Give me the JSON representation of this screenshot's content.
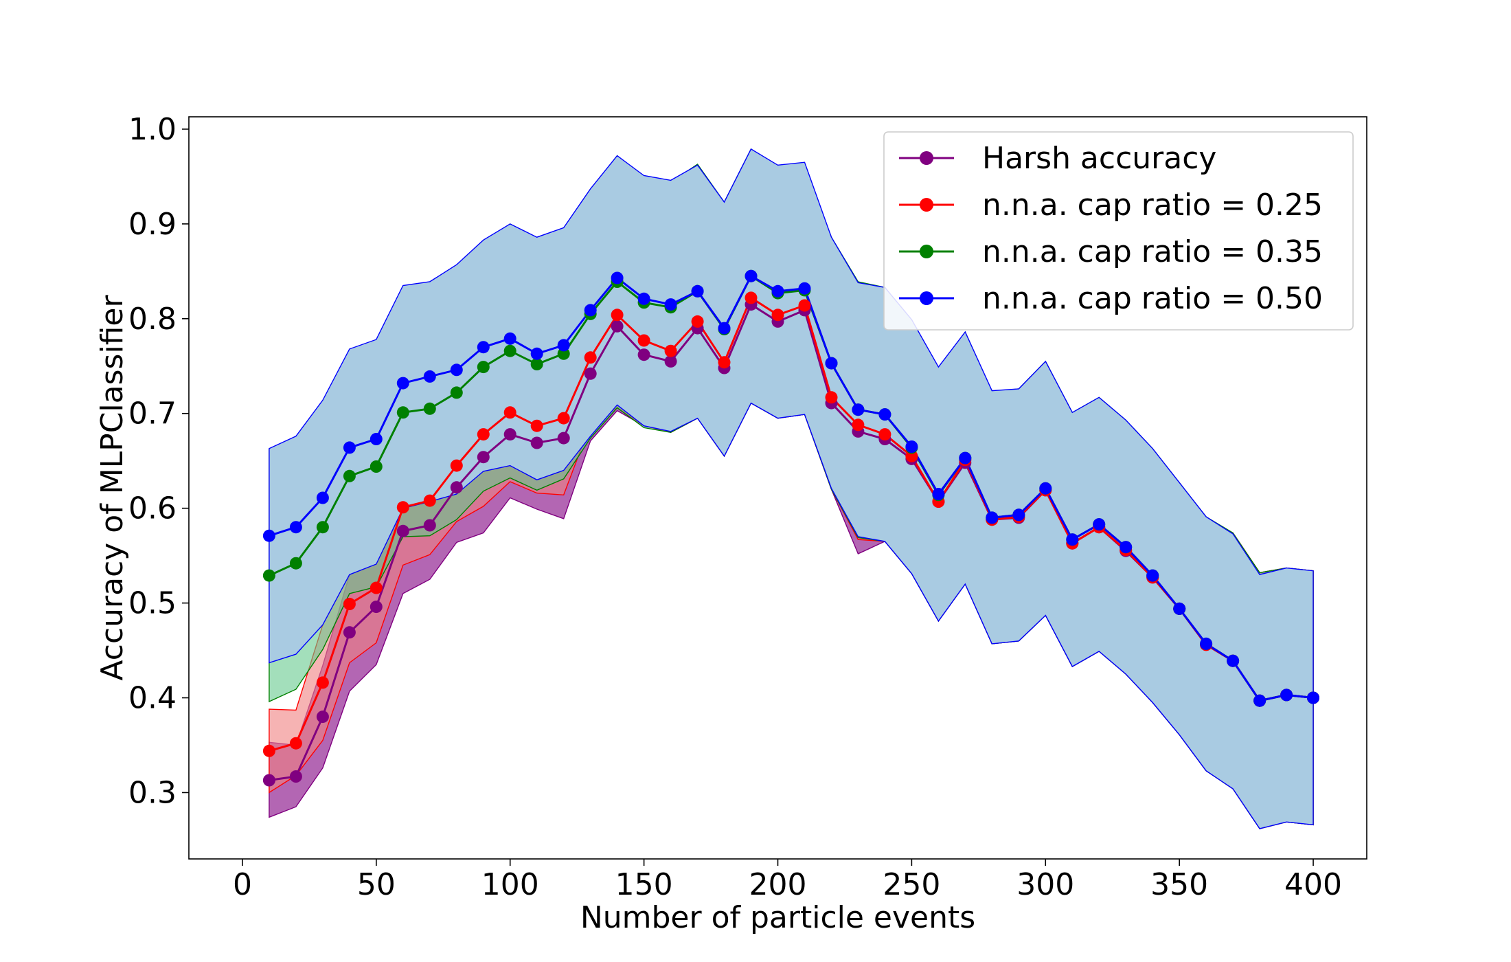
{
  "chart_data": {
    "type": "line",
    "title": "",
    "xlabel": "Number of particle events",
    "ylabel": "Accuracy of MLPClassifier",
    "xlim": [
      -20,
      420
    ],
    "ylim": [
      0.23,
      1.013
    ],
    "xticks": [
      0,
      50,
      100,
      150,
      200,
      250,
      300,
      350,
      400
    ],
    "yticks": [
      0.3,
      0.4,
      0.5,
      0.6,
      0.7,
      0.8,
      0.9,
      1.0
    ],
    "xtick_labels": [
      "0",
      "50",
      "100",
      "150",
      "200",
      "250",
      "300",
      "350",
      "400"
    ],
    "ytick_labels": [
      "0.3",
      "0.4",
      "0.5",
      "0.6",
      "0.7",
      "0.8",
      "0.9",
      "1.0"
    ],
    "grid": false,
    "legend_position": "top-right",
    "x": [
      10,
      20,
      30,
      40,
      50,
      60,
      70,
      80,
      90,
      100,
      110,
      120,
      130,
      140,
      150,
      160,
      170,
      180,
      190,
      200,
      210,
      220,
      230,
      240,
      250,
      260,
      270,
      280,
      290,
      300,
      310,
      320,
      330,
      340,
      350,
      360,
      370,
      380,
      390,
      400
    ],
    "series": [
      {
        "name": "Harsh accuracy",
        "color": "#800080",
        "band_color": "#800080",
        "values": [
          0.313,
          0.317,
          0.38,
          0.469,
          0.496,
          0.576,
          0.582,
          0.622,
          0.654,
          0.678,
          0.669,
          0.674,
          0.742,
          0.792,
          0.762,
          0.755,
          0.79,
          0.748,
          0.815,
          0.797,
          0.809,
          0.711,
          0.681,
          0.673,
          0.652,
          0.607,
          0.648,
          0.588,
          0.59,
          0.619,
          0.563,
          0.58,
          0.555,
          0.527,
          0.494,
          0.456,
          0.439,
          0.397,
          0.403,
          0.4
        ],
        "lower": [
          0.274,
          0.285,
          0.326,
          0.407,
          0.435,
          0.51,
          0.525,
          0.564,
          0.574,
          0.611,
          0.599,
          0.589,
          0.671,
          0.703,
          0.687,
          0.68,
          0.695,
          0.655,
          0.711,
          0.695,
          0.699,
          0.62,
          0.552,
          0.565,
          0.531,
          0.481,
          0.52,
          0.457,
          0.46,
          0.487,
          0.433,
          0.449,
          0.425,
          0.395,
          0.361,
          0.323,
          0.304,
          0.262,
          0.269,
          0.266
        ],
        "upper": [
          0.353,
          0.35,
          0.434,
          0.53,
          0.556,
          0.641,
          0.638,
          0.68,
          0.733,
          0.745,
          0.738,
          0.759,
          0.813,
          0.881,
          0.837,
          0.83,
          0.885,
          0.841,
          0.919,
          0.899,
          0.919,
          0.802,
          0.81,
          0.781,
          0.773,
          0.733,
          0.776,
          0.719,
          0.72,
          0.751,
          0.693,
          0.711,
          0.685,
          0.659,
          0.627,
          0.589,
          0.574,
          0.532,
          0.537,
          0.534
        ]
      },
      {
        "name": "n.n.a. cap ratio = 0.25",
        "color": "#ff0000",
        "band_color": "#f08080",
        "values": [
          0.344,
          0.352,
          0.416,
          0.499,
          0.516,
          0.601,
          0.608,
          0.645,
          0.678,
          0.701,
          0.687,
          0.695,
          0.759,
          0.804,
          0.777,
          0.766,
          0.797,
          0.754,
          0.822,
          0.804,
          0.814,
          0.717,
          0.688,
          0.678,
          0.655,
          0.607,
          0.651,
          0.588,
          0.591,
          0.619,
          0.563,
          0.58,
          0.556,
          0.527,
          0.494,
          0.456,
          0.439,
          0.397,
          0.403,
          0.4
        ],
        "lower": [
          0.3,
          0.318,
          0.355,
          0.437,
          0.458,
          0.54,
          0.551,
          0.586,
          0.602,
          0.628,
          0.616,
          0.614,
          0.689,
          0.706,
          0.687,
          0.68,
          0.695,
          0.655,
          0.711,
          0.695,
          0.699,
          0.62,
          0.567,
          0.565,
          0.531,
          0.481,
          0.52,
          0.457,
          0.46,
          0.487,
          0.433,
          0.449,
          0.425,
          0.395,
          0.361,
          0.323,
          0.304,
          0.262,
          0.269,
          0.266
        ],
        "upper": [
          0.388,
          0.387,
          0.477,
          0.561,
          0.575,
          0.662,
          0.665,
          0.703,
          0.754,
          0.774,
          0.758,
          0.776,
          0.829,
          0.902,
          0.867,
          0.852,
          0.899,
          0.853,
          0.933,
          0.913,
          0.929,
          0.814,
          0.809,
          0.791,
          0.779,
          0.733,
          0.782,
          0.719,
          0.722,
          0.751,
          0.693,
          0.711,
          0.687,
          0.659,
          0.627,
          0.589,
          0.574,
          0.532,
          0.537,
          0.534
        ]
      },
      {
        "name": "n.n.a. cap ratio = 0.35",
        "color": "#008000",
        "band_color": "#66c98e",
        "values": [
          0.529,
          0.542,
          0.58,
          0.634,
          0.644,
          0.701,
          0.705,
          0.722,
          0.749,
          0.766,
          0.752,
          0.763,
          0.805,
          0.839,
          0.817,
          0.812,
          0.829,
          0.789,
          0.845,
          0.827,
          0.83,
          0.753,
          0.704,
          0.699,
          0.664,
          0.614,
          0.653,
          0.59,
          0.593,
          0.621,
          0.567,
          0.583,
          0.559,
          0.529,
          0.494,
          0.457,
          0.439,
          0.397,
          0.403,
          0.4
        ],
        "lower": [
          0.396,
          0.409,
          0.451,
          0.51,
          0.517,
          0.57,
          0.571,
          0.588,
          0.618,
          0.632,
          0.619,
          0.631,
          0.674,
          0.706,
          0.685,
          0.68,
          0.695,
          0.655,
          0.711,
          0.695,
          0.699,
          0.62,
          0.569,
          0.565,
          0.531,
          0.481,
          0.52,
          0.457,
          0.46,
          0.487,
          0.433,
          0.449,
          0.425,
          0.395,
          0.361,
          0.323,
          0.304,
          0.262,
          0.269,
          0.266
        ],
        "upper": [
          0.662,
          0.675,
          0.709,
          0.758,
          0.771,
          0.832,
          0.839,
          0.856,
          0.88,
          0.9,
          0.885,
          0.895,
          0.936,
          0.972,
          0.949,
          0.944,
          0.963,
          0.923,
          0.979,
          0.959,
          0.961,
          0.886,
          0.839,
          0.833,
          0.797,
          0.747,
          0.786,
          0.723,
          0.726,
          0.755,
          0.701,
          0.717,
          0.693,
          0.663,
          0.627,
          0.591,
          0.574,
          0.532,
          0.537,
          0.534
        ]
      },
      {
        "name": "n.n.a. cap ratio = 0.50",
        "color": "#0000ff",
        "band_color": "#a9cbe2",
        "values": [
          0.571,
          0.58,
          0.611,
          0.664,
          0.673,
          0.732,
          0.739,
          0.746,
          0.77,
          0.779,
          0.763,
          0.772,
          0.809,
          0.843,
          0.821,
          0.815,
          0.829,
          0.79,
          0.845,
          0.829,
          0.832,
          0.753,
          0.704,
          0.699,
          0.665,
          0.615,
          0.653,
          0.59,
          0.593,
          0.621,
          0.567,
          0.583,
          0.559,
          0.529,
          0.494,
          0.457,
          0.439,
          0.397,
          0.403,
          0.4
        ],
        "lower": [
          0.437,
          0.446,
          0.477,
          0.53,
          0.541,
          0.6,
          0.607,
          0.615,
          0.639,
          0.645,
          0.63,
          0.64,
          0.676,
          0.709,
          0.687,
          0.681,
          0.695,
          0.655,
          0.711,
          0.695,
          0.699,
          0.621,
          0.57,
          0.565,
          0.531,
          0.481,
          0.52,
          0.457,
          0.46,
          0.487,
          0.433,
          0.449,
          0.425,
          0.395,
          0.361,
          0.323,
          0.304,
          0.262,
          0.269,
          0.266
        ],
        "upper": [
          0.663,
          0.676,
          0.714,
          0.768,
          0.778,
          0.835,
          0.839,
          0.857,
          0.883,
          0.9,
          0.886,
          0.896,
          0.937,
          0.972,
          0.951,
          0.946,
          0.962,
          0.923,
          0.979,
          0.962,
          0.965,
          0.886,
          0.838,
          0.833,
          0.799,
          0.749,
          0.786,
          0.724,
          0.726,
          0.755,
          0.701,
          0.717,
          0.693,
          0.663,
          0.627,
          0.591,
          0.573,
          0.53,
          0.537,
          0.534
        ]
      }
    ]
  }
}
